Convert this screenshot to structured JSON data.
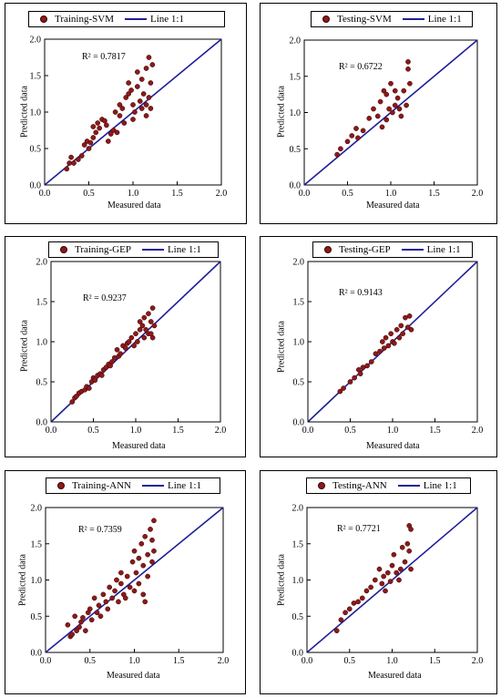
{
  "colors": {
    "marker_fill": "#8b1a1a",
    "marker_edge": "#3a0000",
    "line": "#1f1f99"
  },
  "chart_data": [
    {
      "type": "scatter",
      "legend": {
        "series": "Training-SVM",
        "line": "Line 1:1"
      },
      "r2": "R² = 0.7817",
      "xlabel": "Measured data",
      "ylabel": "Predicted data",
      "xlim": [
        0,
        2
      ],
      "ylim": [
        0,
        2
      ],
      "xticks": [
        "0.0",
        "0.5",
        "1.0",
        "1.5",
        "2.0"
      ],
      "yticks": [
        "0.0",
        "0.5",
        "1.0",
        "1.5",
        "2.0"
      ],
      "points": [
        [
          0.25,
          0.22
        ],
        [
          0.28,
          0.3
        ],
        [
          0.3,
          0.38
        ],
        [
          0.33,
          0.3
        ],
        [
          0.38,
          0.35
        ],
        [
          0.42,
          0.4
        ],
        [
          0.45,
          0.55
        ],
        [
          0.48,
          0.6
        ],
        [
          0.5,
          0.5
        ],
        [
          0.52,
          0.58
        ],
        [
          0.55,
          0.65
        ],
        [
          0.55,
          0.8
        ],
        [
          0.58,
          0.72
        ],
        [
          0.6,
          0.85
        ],
        [
          0.62,
          0.78
        ],
        [
          0.65,
          0.9
        ],
        [
          0.68,
          0.88
        ],
        [
          0.7,
          0.82
        ],
        [
          0.72,
          0.6
        ],
        [
          0.75,
          0.7
        ],
        [
          0.78,
          0.75
        ],
        [
          0.8,
          1.0
        ],
        [
          0.82,
          0.72
        ],
        [
          0.85,
          0.95
        ],
        [
          0.85,
          1.1
        ],
        [
          0.88,
          1.05
        ],
        [
          0.9,
          0.85
        ],
        [
          0.92,
          1.2
        ],
        [
          0.95,
          1.25
        ],
        [
          0.95,
          1.4
        ],
        [
          0.98,
          1.3
        ],
        [
          1.0,
          0.9
        ],
        [
          1.0,
          1.1
        ],
        [
          1.02,
          1.0
        ],
        [
          1.05,
          1.35
        ],
        [
          1.05,
          1.55
        ],
        [
          1.08,
          1.15
        ],
        [
          1.1,
          1.05
        ],
        [
          1.1,
          1.45
        ],
        [
          1.12,
          1.25
        ],
        [
          1.15,
          1.1
        ],
        [
          1.15,
          1.6
        ],
        [
          1.18,
          1.75
        ],
        [
          1.18,
          1.2
        ],
        [
          1.2,
          1.4
        ],
        [
          1.2,
          1.05
        ],
        [
          1.22,
          1.65
        ],
        [
          1.15,
          0.95
        ]
      ]
    },
    {
      "type": "scatter",
      "legend": {
        "series": "Testing-SVM",
        "line": "Line 1:1"
      },
      "r2": "R² = 0.6722",
      "xlabel": "Measured data",
      "ylabel": "Predicted data",
      "xlim": [
        0,
        2
      ],
      "ylim": [
        0,
        2
      ],
      "xticks": [
        "0.0",
        "0.5",
        "1.0",
        "1.5",
        "2.0"
      ],
      "yticks": [
        "0.0",
        "0.5",
        "1.0",
        "1.5",
        "2.0"
      ],
      "points": [
        [
          0.38,
          0.42
        ],
        [
          0.42,
          0.5
        ],
        [
          0.5,
          0.6
        ],
        [
          0.55,
          0.68
        ],
        [
          0.6,
          0.78
        ],
        [
          0.62,
          0.65
        ],
        [
          0.68,
          0.75
        ],
        [
          0.75,
          0.92
        ],
        [
          0.8,
          1.05
        ],
        [
          0.85,
          0.95
        ],
        [
          0.88,
          1.15
        ],
        [
          0.9,
          0.8
        ],
        [
          0.92,
          1.3
        ],
        [
          0.95,
          1.25
        ],
        [
          0.95,
          0.9
        ],
        [
          0.98,
          1.05
        ],
        [
          1.0,
          1.4
        ],
        [
          1.02,
          1.0
        ],
        [
          1.05,
          1.1
        ],
        [
          1.08,
          1.2
        ],
        [
          1.1,
          1.05
        ],
        [
          1.12,
          0.95
        ],
        [
          1.15,
          1.3
        ],
        [
          1.18,
          1.1
        ],
        [
          1.2,
          1.6
        ],
        [
          1.2,
          1.7
        ],
        [
          1.22,
          1.4
        ],
        [
          1.05,
          1.3
        ]
      ]
    },
    {
      "type": "scatter",
      "legend": {
        "series": "Training-GEP",
        "line": "Line 1:1"
      },
      "r2": "R² = 0.9237",
      "xlabel": "Measured data",
      "ylabel": "Predicted data",
      "xlim": [
        0,
        2
      ],
      "ylim": [
        0,
        2
      ],
      "xticks": [
        "0.0",
        "0.5",
        "1.0",
        "1.5",
        "2.0"
      ],
      "yticks": [
        "0.0",
        "0.5",
        "1.0",
        "1.5",
        "2.0"
      ],
      "points": [
        [
          0.25,
          0.25
        ],
        [
          0.28,
          0.3
        ],
        [
          0.3,
          0.32
        ],
        [
          0.33,
          0.36
        ],
        [
          0.36,
          0.38
        ],
        [
          0.4,
          0.4
        ],
        [
          0.42,
          0.44
        ],
        [
          0.45,
          0.42
        ],
        [
          0.48,
          0.5
        ],
        [
          0.5,
          0.55
        ],
        [
          0.52,
          0.52
        ],
        [
          0.55,
          0.58
        ],
        [
          0.58,
          0.6
        ],
        [
          0.6,
          0.58
        ],
        [
          0.62,
          0.65
        ],
        [
          0.65,
          0.68
        ],
        [
          0.68,
          0.72
        ],
        [
          0.7,
          0.7
        ],
        [
          0.72,
          0.75
        ],
        [
          0.75,
          0.8
        ],
        [
          0.78,
          0.9
        ],
        [
          0.8,
          0.82
        ],
        [
          0.82,
          0.85
        ],
        [
          0.85,
          0.95
        ],
        [
          0.88,
          0.92
        ],
        [
          0.9,
          0.98
        ],
        [
          0.92,
          1.0
        ],
        [
          0.95,
          1.05
        ],
        [
          0.98,
          0.95
        ],
        [
          1.0,
          1.1
        ],
        [
          1.02,
          1.0
        ],
        [
          1.05,
          1.15
        ],
        [
          1.05,
          1.25
        ],
        [
          1.08,
          1.2
        ],
        [
          1.1,
          1.05
        ],
        [
          1.1,
          1.3
        ],
        [
          1.12,
          1.15
        ],
        [
          1.15,
          1.1
        ],
        [
          1.15,
          1.35
        ],
        [
          1.18,
          1.25
        ],
        [
          1.2,
          1.05
        ],
        [
          1.2,
          1.42
        ],
        [
          1.22,
          1.2
        ],
        [
          1.18,
          1.1
        ]
      ]
    },
    {
      "type": "scatter",
      "legend": {
        "series": "Testing-GEP",
        "line": "Line 1:1"
      },
      "r2": "R² = 0.9143",
      "xlabel": "Measured data",
      "ylabel": "Predicted data",
      "xlim": [
        0,
        2
      ],
      "ylim": [
        0,
        2
      ],
      "xticks": [
        "0.0",
        "0.5",
        "1.0",
        "1.5",
        "2.0"
      ],
      "yticks": [
        "0.0",
        "0.5",
        "1.0",
        "1.5",
        "2.0"
      ],
      "points": [
        [
          0.38,
          0.38
        ],
        [
          0.42,
          0.42
        ],
        [
          0.5,
          0.5
        ],
        [
          0.55,
          0.55
        ],
        [
          0.6,
          0.65
        ],
        [
          0.62,
          0.6
        ],
        [
          0.65,
          0.68
        ],
        [
          0.7,
          0.7
        ],
        [
          0.75,
          0.75
        ],
        [
          0.8,
          0.85
        ],
        [
          0.85,
          0.88
        ],
        [
          0.88,
          1.0
        ],
        [
          0.9,
          0.92
        ],
        [
          0.92,
          1.05
        ],
        [
          0.95,
          0.95
        ],
        [
          0.98,
          1.1
        ],
        [
          1.0,
          1.0
        ],
        [
          1.02,
          0.98
        ],
        [
          1.05,
          1.15
        ],
        [
          1.08,
          1.05
        ],
        [
          1.1,
          1.2
        ],
        [
          1.12,
          1.1
        ],
        [
          1.15,
          1.3
        ],
        [
          1.18,
          1.18
        ],
        [
          1.2,
          1.32
        ],
        [
          1.22,
          1.15
        ]
      ]
    },
    {
      "type": "scatter",
      "legend": {
        "series": "Training-ANN",
        "line": "Line 1:1"
      },
      "r2": "R² = 0.7359",
      "xlabel": "Measured data",
      "ylabel": "Predicted data",
      "xlim": [
        0,
        2
      ],
      "ylim": [
        0,
        2
      ],
      "xticks": [
        "0.0",
        "0.5",
        "1.0",
        "1.5",
        "2.0"
      ],
      "yticks": [
        "0.0",
        "0.5",
        "1.0",
        "1.5",
        "2.0"
      ],
      "points": [
        [
          0.25,
          0.38
        ],
        [
          0.28,
          0.22
        ],
        [
          0.3,
          0.25
        ],
        [
          0.33,
          0.5
        ],
        [
          0.35,
          0.3
        ],
        [
          0.38,
          0.35
        ],
        [
          0.4,
          0.42
        ],
        [
          0.42,
          0.48
        ],
        [
          0.45,
          0.3
        ],
        [
          0.48,
          0.55
        ],
        [
          0.5,
          0.6
        ],
        [
          0.52,
          0.45
        ],
        [
          0.55,
          0.75
        ],
        [
          0.58,
          0.55
        ],
        [
          0.6,
          0.65
        ],
        [
          0.62,
          0.5
        ],
        [
          0.65,
          0.8
        ],
        [
          0.68,
          0.7
        ],
        [
          0.7,
          0.6
        ],
        [
          0.72,
          0.9
        ],
        [
          0.75,
          0.75
        ],
        [
          0.78,
          0.85
        ],
        [
          0.8,
          1.0
        ],
        [
          0.82,
          0.7
        ],
        [
          0.85,
          0.95
        ],
        [
          0.85,
          1.1
        ],
        [
          0.88,
          0.8
        ],
        [
          0.9,
          0.75
        ],
        [
          0.92,
          1.05
        ],
        [
          0.95,
          0.9
        ],
        [
          0.98,
          1.25
        ],
        [
          1.0,
          1.4
        ],
        [
          1.0,
          0.85
        ],
        [
          1.02,
          1.1
        ],
        [
          1.05,
          1.3
        ],
        [
          1.05,
          0.95
        ],
        [
          1.08,
          1.5
        ],
        [
          1.1,
          1.2
        ],
        [
          1.1,
          0.8
        ],
        [
          1.12,
          1.6
        ],
        [
          1.15,
          1.05
        ],
        [
          1.15,
          1.35
        ],
        [
          1.18,
          1.7
        ],
        [
          1.2,
          1.55
        ],
        [
          1.2,
          1.25
        ],
        [
          1.22,
          1.82
        ],
        [
          1.22,
          1.4
        ],
        [
          1.12,
          0.7
        ]
      ]
    },
    {
      "type": "scatter",
      "legend": {
        "series": "Testing-ANN",
        "line": "Line 1:1"
      },
      "r2": "R² = 0.7721",
      "xlabel": "Measured data",
      "ylabel": "Predicted data",
      "xlim": [
        0,
        2
      ],
      "ylim": [
        0,
        2
      ],
      "xticks": [
        "0.0",
        "0.5",
        "1.0",
        "1.5",
        "2.0"
      ],
      "yticks": [
        "0.0",
        "0.5",
        "1.0",
        "1.5",
        "2.0"
      ],
      "points": [
        [
          0.35,
          0.3
        ],
        [
          0.4,
          0.45
        ],
        [
          0.45,
          0.55
        ],
        [
          0.5,
          0.6
        ],
        [
          0.55,
          0.68
        ],
        [
          0.6,
          0.7
        ],
        [
          0.65,
          0.75
        ],
        [
          0.7,
          0.85
        ],
        [
          0.75,
          0.9
        ],
        [
          0.8,
          1.0
        ],
        [
          0.85,
          1.15
        ],
        [
          0.88,
          0.95
        ],
        [
          0.9,
          1.05
        ],
        [
          0.92,
          0.85
        ],
        [
          0.95,
          1.1
        ],
        [
          0.98,
          0.98
        ],
        [
          1.0,
          1.2
        ],
        [
          1.02,
          1.35
        ],
        [
          1.05,
          1.1
        ],
        [
          1.08,
          1.0
        ],
        [
          1.1,
          1.15
        ],
        [
          1.12,
          1.45
        ],
        [
          1.15,
          1.25
        ],
        [
          1.18,
          1.5
        ],
        [
          1.2,
          1.75
        ],
        [
          1.2,
          1.4
        ],
        [
          1.22,
          1.15
        ],
        [
          1.22,
          1.7
        ]
      ]
    }
  ]
}
